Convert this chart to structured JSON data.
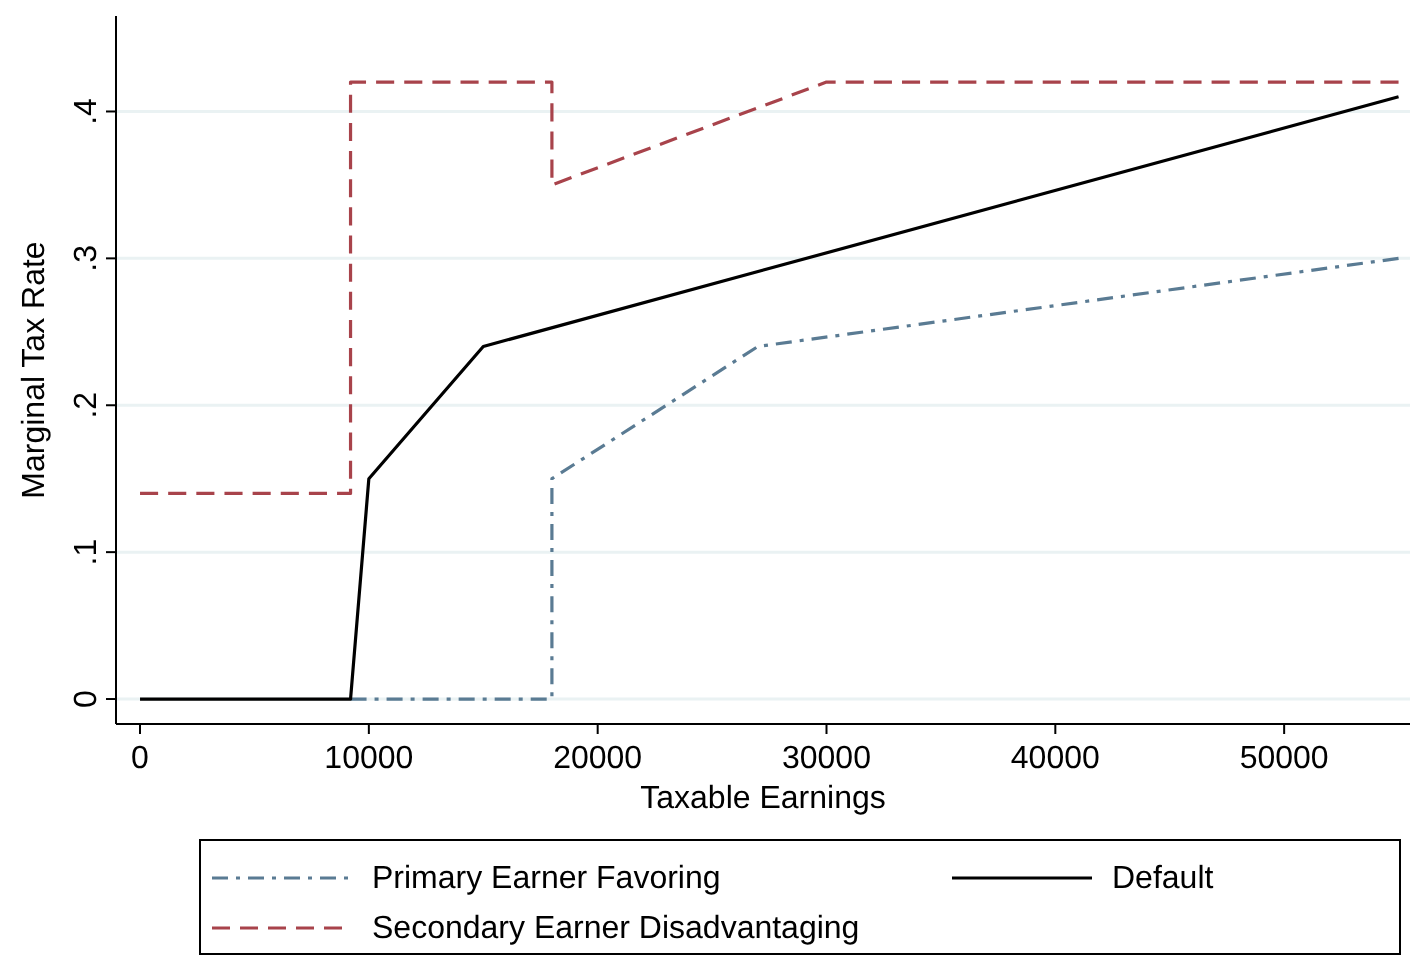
{
  "chart_data": {
    "type": "line",
    "xlabel": "Taxable Earnings",
    "ylabel": "Marginal Tax Rate",
    "xlim": [
      -1050,
      55500
    ],
    "ylim": [
      -0.017,
      0.465
    ],
    "xticks": [
      0,
      10000,
      20000,
      30000,
      40000,
      50000
    ],
    "yticks": [
      {
        "value": 0,
        "label": "0"
      },
      {
        "value": 0.1,
        "label": ".1"
      },
      {
        "value": 0.2,
        "label": ".2"
      },
      {
        "value": 0.3,
        "label": ".3"
      },
      {
        "value": 0.4,
        "label": ".4"
      }
    ],
    "grid": "y",
    "legend": "bottom",
    "series": [
      {
        "name": "Primary Earner Favoring",
        "color": "#5a7b93",
        "line_style": "dashdot",
        "x": [
          9200,
          18000,
          18000,
          27000,
          55000
        ],
        "values": [
          0,
          0,
          0.15,
          0.24,
          0.3
        ]
      },
      {
        "name": "Default",
        "color": "#000000",
        "line_style": "solid",
        "x": [
          0,
          9200,
          10000,
          15000,
          55000
        ],
        "values": [
          0,
          0,
          0.15,
          0.24,
          0.41
        ]
      },
      {
        "name": "Secondary Earner Disadvantaging",
        "color": "#a8434b",
        "line_style": "dashed",
        "x": [
          0,
          9200,
          9200,
          18000,
          18000,
          30000,
          55000
        ],
        "values": [
          0.14,
          0.14,
          0.42,
          0.42,
          0.35,
          0.42,
          0.42
        ]
      }
    ]
  }
}
